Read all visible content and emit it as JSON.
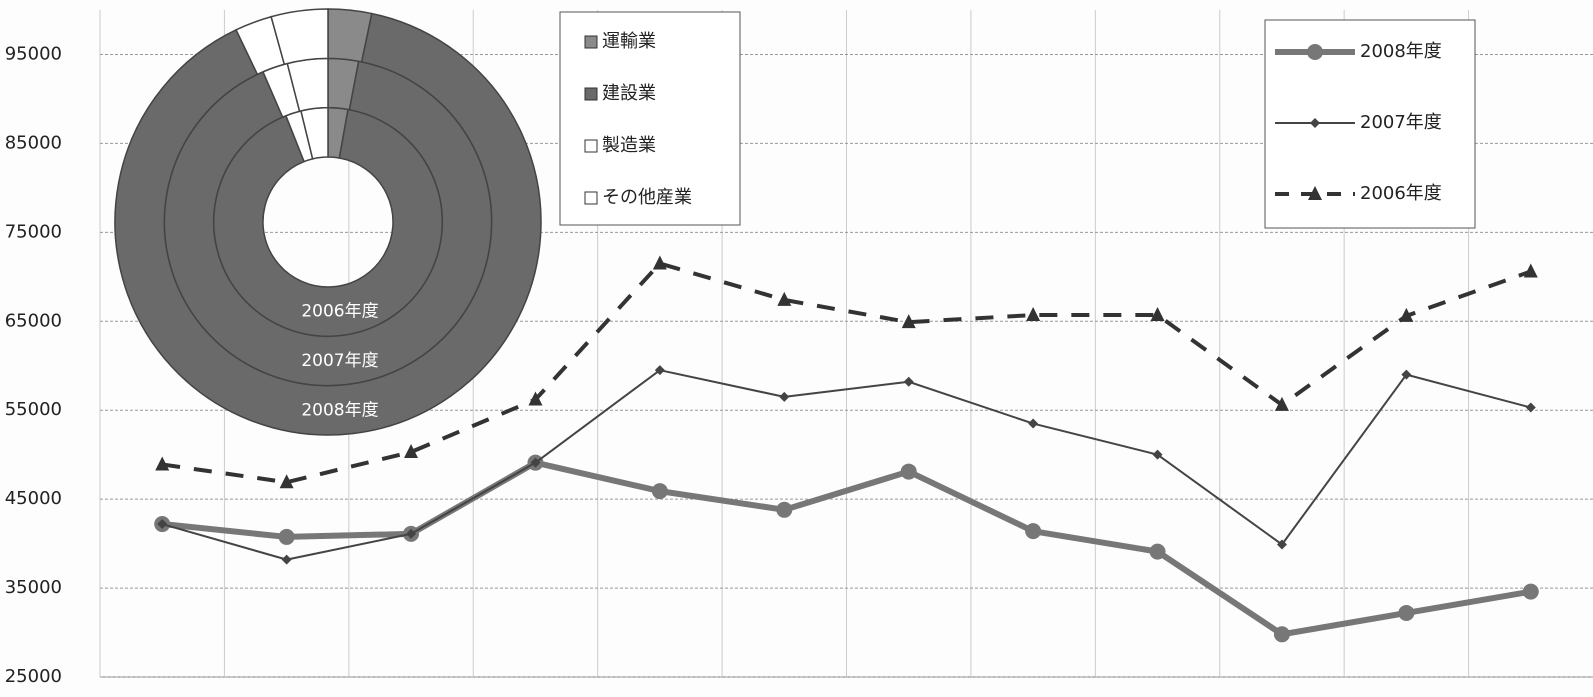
{
  "chart_data": [
    {
      "type": "line",
      "categories": [
        null,
        null,
        null,
        null,
        null,
        null,
        null,
        null,
        null,
        null,
        null,
        null
      ],
      "series": [
        {
          "name": "2008年度",
          "color": "#777777",
          "width": 6,
          "marker": "circle",
          "dashed": false,
          "values": [
            42200,
            40750,
            41100,
            49100,
            45900,
            43800,
            48100,
            41400,
            39100,
            29800,
            32200,
            34600
          ]
        },
        {
          "name": "2007年度",
          "color": "#444444",
          "width": 2,
          "marker": "diamond",
          "dashed": false,
          "values": [
            42200,
            38200,
            41100,
            49100,
            59500,
            56500,
            58200,
            53500,
            50000,
            39900,
            59000,
            55300
          ]
        },
        {
          "name": "2006年度",
          "color": "#333333",
          "width": 4,
          "marker": "triangle",
          "dashed": true,
          "values": [
            48900,
            46900,
            50300,
            56200,
            71500,
            67400,
            64900,
            65700,
            65700,
            55600,
            65600,
            70600
          ]
        }
      ],
      "ylim": [
        25000,
        100000
      ],
      "yticks": [
        25000,
        35000,
        45000,
        55000,
        65000,
        75000,
        85000,
        95000
      ],
      "grid": true,
      "legend": "top-right"
    },
    {
      "type": "donut",
      "categories": [
        "運輸業",
        "建設業",
        "製造業",
        "その他産業"
      ],
      "colors": [
        "#8a8a8a",
        "#6a6a6a",
        "#ffffff",
        "#ffffff"
      ],
      "series": [
        {
          "name": "2006年度",
          "values": [
            2.8,
            91.2,
            2.2,
            3.8
          ]
        },
        {
          "name": "2007年度",
          "values": [
            3.0,
            90.5,
            2.5,
            4.0
          ]
        },
        {
          "name": "2008年度",
          "values": [
            3.3,
            89.6,
            2.8,
            4.3
          ]
        }
      ],
      "legend": "right"
    }
  ]
}
